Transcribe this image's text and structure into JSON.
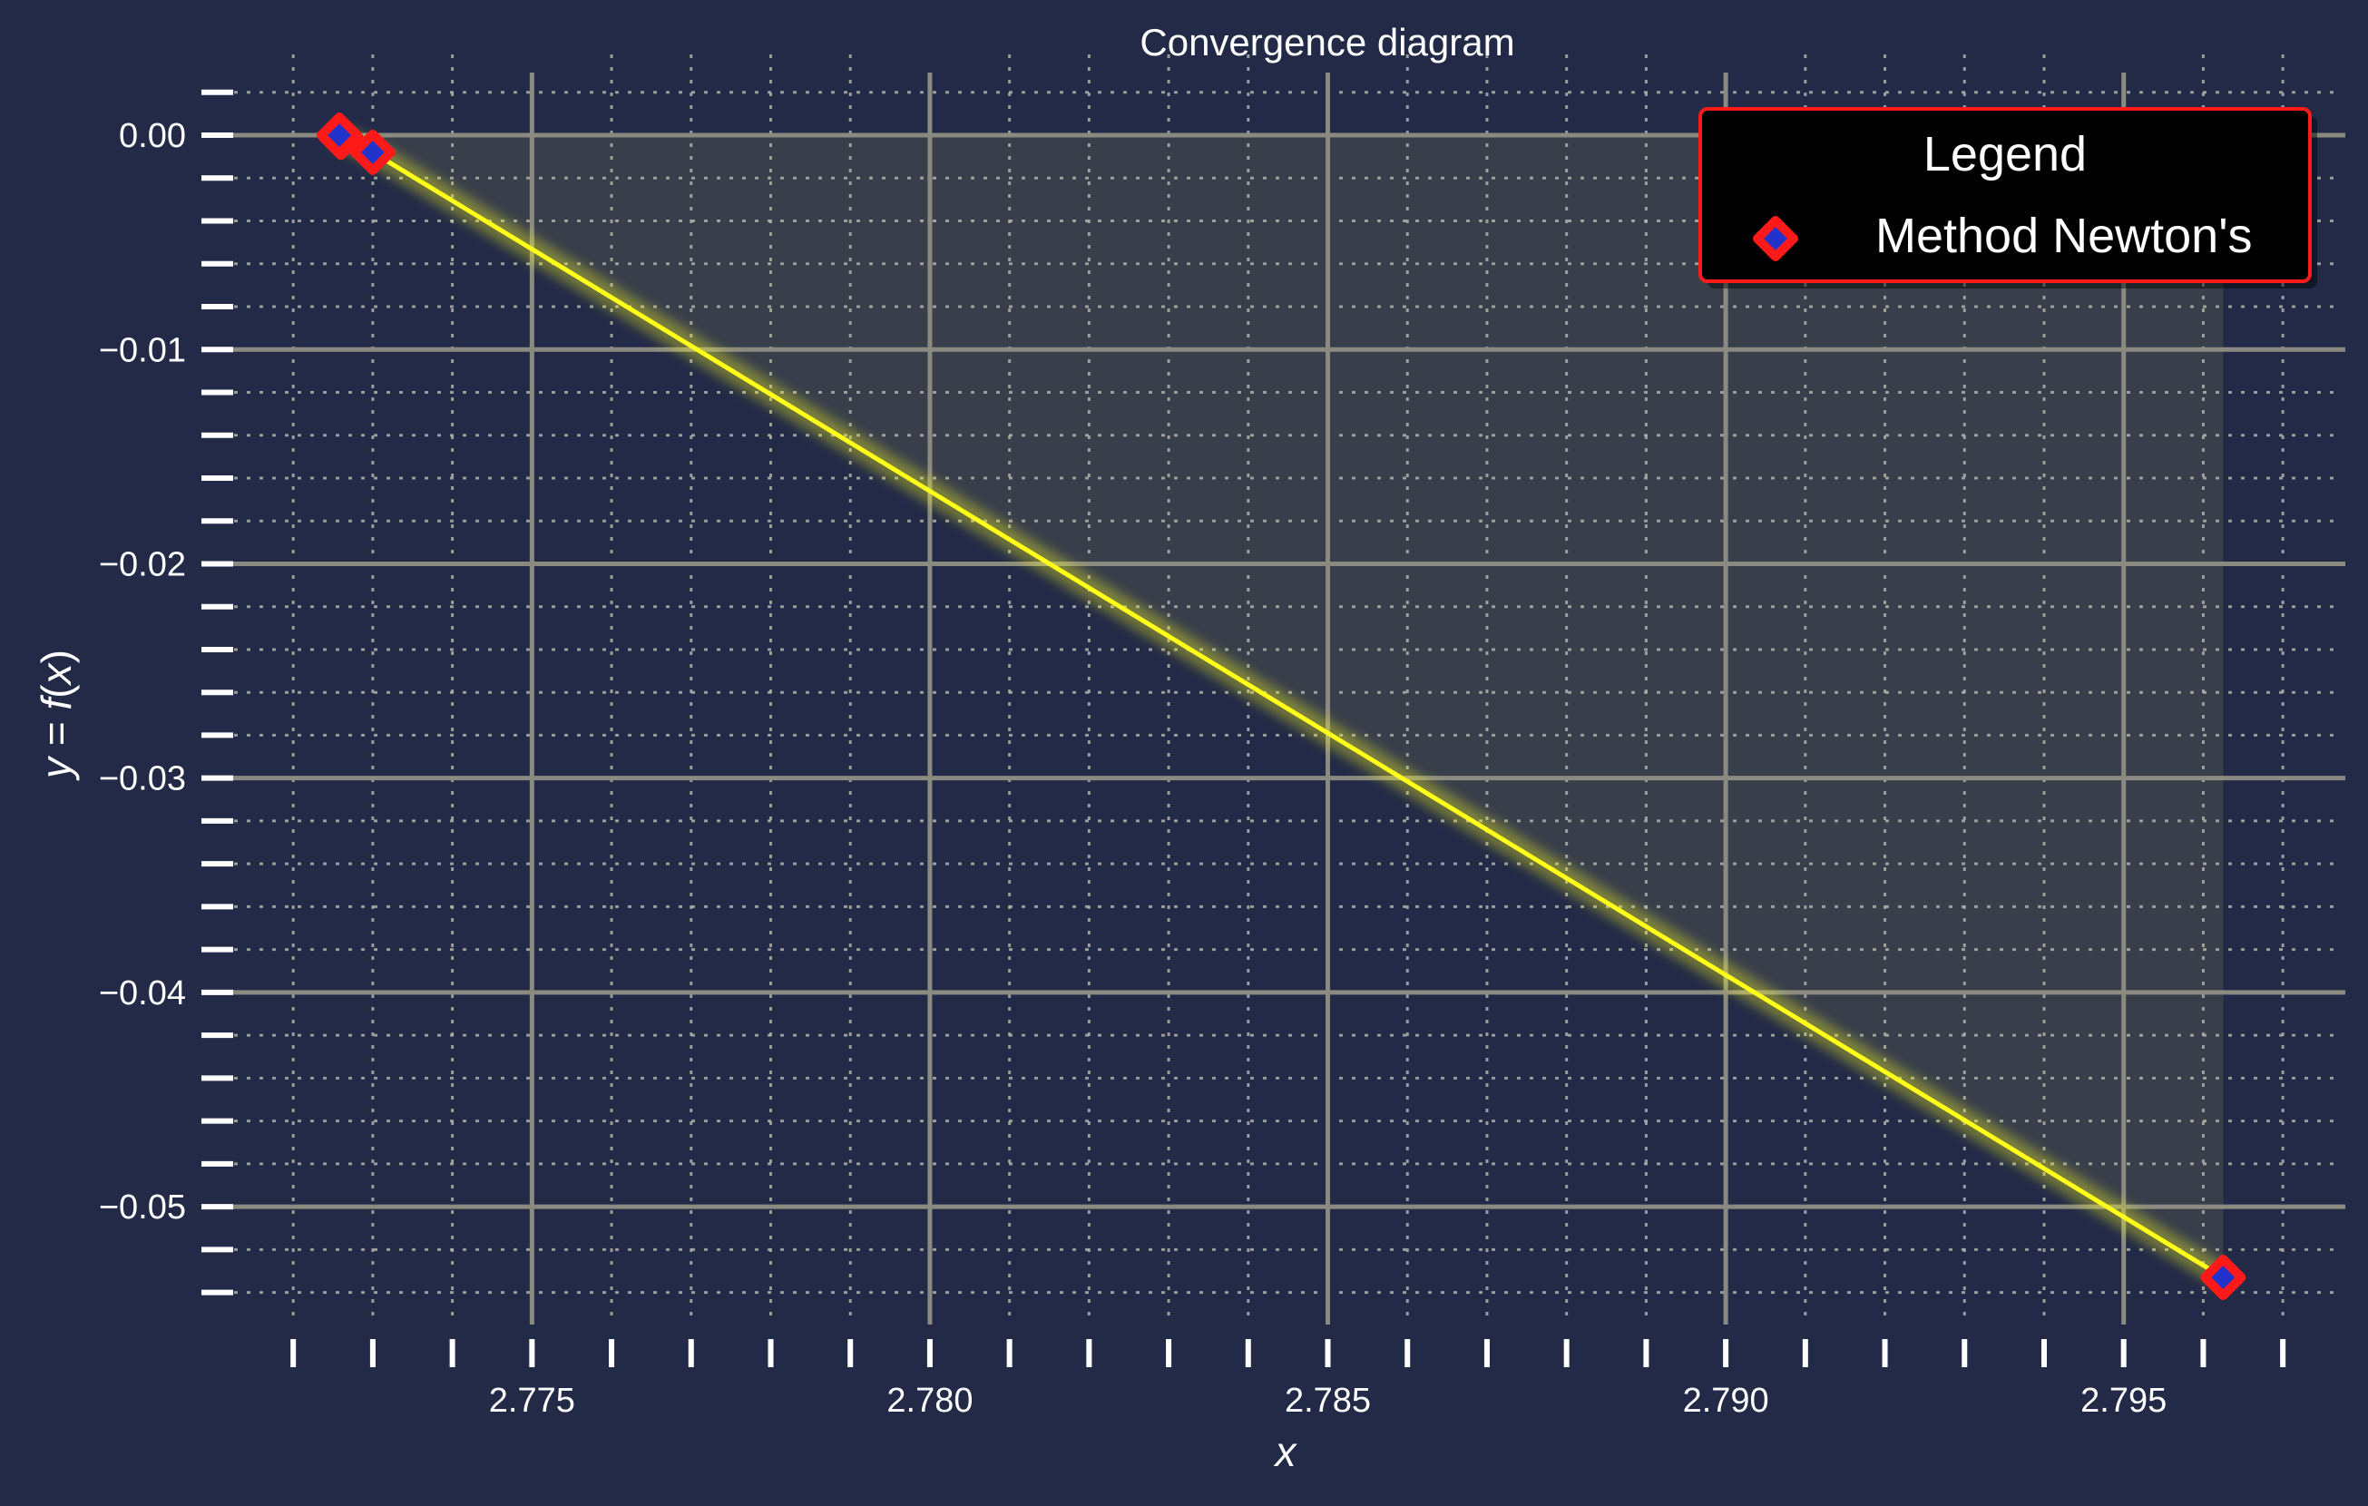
{
  "chart_data": {
    "type": "line",
    "title": "Convergence diagram",
    "xlabel_var": "x",
    "ylabel_parts": [
      "y",
      " = ",
      "f",
      "(",
      "x",
      ")"
    ],
    "xlim": [
      2.7712,
      2.7975
    ],
    "ylim": [
      -0.0555,
      0.0025
    ],
    "x_major_ticks": [
      2.775,
      2.78,
      2.785,
      2.79,
      2.795
    ],
    "x_tick_labels": [
      "2.775",
      "2.780",
      "2.785",
      "2.790",
      "2.795"
    ],
    "x_minor_step": 0.001,
    "y_major_ticks": [
      0.0,
      -0.01,
      -0.02,
      -0.03,
      -0.04,
      -0.05
    ],
    "y_tick_labels": [
      "0.00",
      "−0.01",
      "−0.02",
      "−0.03",
      "−0.04",
      "−0.05"
    ],
    "y_minor_step": 0.002,
    "grid": true,
    "legend": {
      "title": "Legend",
      "placement": "top-right",
      "entries": [
        {
          "label": "Method Newton's",
          "marker": "diamond"
        }
      ]
    },
    "series": [
      {
        "name": "Method Newton's",
        "x": [
          2.79625,
          2.773,
          2.7726,
          2.77258
        ],
        "y": [
          -0.0533,
          -0.0008,
          -0.0001,
          0.0
        ]
      }
    ],
    "fill_region": {
      "x_from": 2.77258,
      "x_to": 2.79625,
      "y_top": 0.0
    },
    "colors": {
      "background": "#222a47",
      "line": "#ffff1a",
      "marker_edge": "#ff1a1a",
      "marker_face": "#2233cc",
      "fill": "#bfbf66",
      "major_grid": "#8a8a80",
      "minor_grid": "#b0b0a8",
      "text": "#ffffff"
    }
  }
}
